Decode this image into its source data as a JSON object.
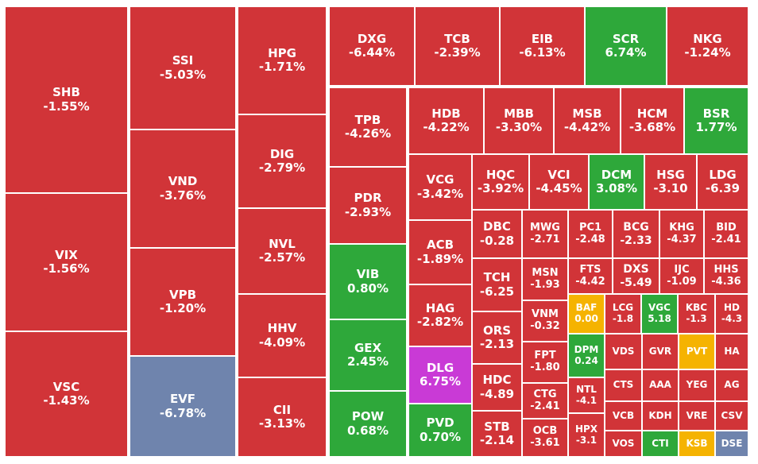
{
  "colors": {
    "red": "#d13438",
    "green": "#2ea83a",
    "yellow": "#f5b301",
    "purple": "#c93ad6",
    "blue": "#6f84ad"
  },
  "chart_data": {
    "type": "treemap",
    "title": "",
    "items": [
      {
        "ticker": "SHB",
        "change": "-1.55%",
        "value": -1.55,
        "color": "red"
      },
      {
        "ticker": "VIX",
        "change": "-1.56%",
        "value": -1.56,
        "color": "red"
      },
      {
        "ticker": "VSC",
        "change": "-1.43%",
        "value": -1.43,
        "color": "red"
      },
      {
        "ticker": "SSI",
        "change": "-5.03%",
        "value": -5.03,
        "color": "red"
      },
      {
        "ticker": "VND",
        "change": "-3.76%",
        "value": -3.76,
        "color": "red"
      },
      {
        "ticker": "VPB",
        "change": "-1.20%",
        "value": -1.2,
        "color": "red"
      },
      {
        "ticker": "EVF",
        "change": "-6.78%",
        "value": -6.78,
        "color": "blue"
      },
      {
        "ticker": "HPG",
        "change": "-1.71%",
        "value": -1.71,
        "color": "red"
      },
      {
        "ticker": "DIG",
        "change": "-2.79%",
        "value": -2.79,
        "color": "red"
      },
      {
        "ticker": "NVL",
        "change": "-2.57%",
        "value": -2.57,
        "color": "red"
      },
      {
        "ticker": "HHV",
        "change": "-4.09%",
        "value": -4.09,
        "color": "red"
      },
      {
        "ticker": "CII",
        "change": "-3.13%",
        "value": -3.13,
        "color": "red"
      },
      {
        "ticker": "DXG",
        "change": "-6.44%",
        "value": -6.44,
        "color": "red"
      },
      {
        "ticker": "TCB",
        "change": "-2.39%",
        "value": -2.39,
        "color": "red"
      },
      {
        "ticker": "EIB",
        "change": "-6.13%",
        "value": -6.13,
        "color": "red"
      },
      {
        "ticker": "SCR",
        "change": "6.74%",
        "value": 6.74,
        "color": "green"
      },
      {
        "ticker": "NKG",
        "change": "-1.24%",
        "value": -1.24,
        "color": "red"
      },
      {
        "ticker": "TPB",
        "change": "-4.26%",
        "value": -4.26,
        "color": "red"
      },
      {
        "ticker": "PDR",
        "change": "-2.93%",
        "value": -2.93,
        "color": "red"
      },
      {
        "ticker": "VIB",
        "change": "0.80%",
        "value": 0.8,
        "color": "green"
      },
      {
        "ticker": "GEX",
        "change": "2.45%",
        "value": 2.45,
        "color": "green"
      },
      {
        "ticker": "POW",
        "change": "0.68%",
        "value": 0.68,
        "color": "green"
      },
      {
        "ticker": "HDB",
        "change": "-4.22%",
        "value": -4.22,
        "color": "red"
      },
      {
        "ticker": "MBB",
        "change": "-3.30%",
        "value": -3.3,
        "color": "red"
      },
      {
        "ticker": "MSB",
        "change": "-4.42%",
        "value": -4.42,
        "color": "red"
      },
      {
        "ticker": "HCM",
        "change": "-3.68%",
        "value": -3.68,
        "color": "red"
      },
      {
        "ticker": "BSR",
        "change": "1.77%",
        "value": 1.77,
        "color": "green"
      },
      {
        "ticker": "VCG",
        "change": "-3.42%",
        "value": -3.42,
        "color": "red"
      },
      {
        "ticker": "ACB",
        "change": "-1.89%",
        "value": -1.89,
        "color": "red"
      },
      {
        "ticker": "HAG",
        "change": "-2.82%",
        "value": -2.82,
        "color": "red"
      },
      {
        "ticker": "DLG",
        "change": "6.75%",
        "value": 6.75,
        "color": "purple"
      },
      {
        "ticker": "PVD",
        "change": "0.70%",
        "value": 0.7,
        "color": "green"
      },
      {
        "ticker": "HQC",
        "change": "-3.92%",
        "value": -3.92,
        "color": "red"
      },
      {
        "ticker": "VCI",
        "change": "-4.45%",
        "value": -4.45,
        "color": "red"
      },
      {
        "ticker": "DCM",
        "change": "3.08%",
        "value": 3.08,
        "color": "green"
      },
      {
        "ticker": "HSG",
        "change": "-3.10",
        "value": -3.1,
        "color": "red"
      },
      {
        "ticker": "LDG",
        "change": "-6.39",
        "value": -6.39,
        "color": "red"
      },
      {
        "ticker": "DBC",
        "change": "-0.28",
        "value": -0.28,
        "color": "red"
      },
      {
        "ticker": "MWG",
        "change": "-2.71",
        "value": -2.71,
        "color": "red"
      },
      {
        "ticker": "PC1",
        "change": "-2.48",
        "value": -2.48,
        "color": "red"
      },
      {
        "ticker": "BCG",
        "change": "-2.33",
        "value": -2.33,
        "color": "red"
      },
      {
        "ticker": "KHG",
        "change": "-4.37",
        "value": -4.37,
        "color": "red"
      },
      {
        "ticker": "BID",
        "change": "-2.41",
        "value": -2.41,
        "color": "red"
      },
      {
        "ticker": "TCH",
        "change": "-6.25",
        "value": -6.25,
        "color": "red"
      },
      {
        "ticker": "MSN",
        "change": "-1.93",
        "value": -1.93,
        "color": "red"
      },
      {
        "ticker": "FTS",
        "change": "-4.42",
        "value": -4.42,
        "color": "red"
      },
      {
        "ticker": "DXS",
        "change": "-5.49",
        "value": -5.49,
        "color": "red"
      },
      {
        "ticker": "IJC",
        "change": "-1.09",
        "value": -1.09,
        "color": "red"
      },
      {
        "ticker": "HHS",
        "change": "-4.36",
        "value": -4.36,
        "color": "red"
      },
      {
        "ticker": "ORS",
        "change": "-2.13",
        "value": -2.13,
        "color": "red"
      },
      {
        "ticker": "VNM",
        "change": "-0.32",
        "value": -0.32,
        "color": "red"
      },
      {
        "ticker": "BAF",
        "change": "0.00",
        "value": 0.0,
        "color": "yellow"
      },
      {
        "ticker": "LCG",
        "change": "-1.8",
        "value": -1.8,
        "color": "red"
      },
      {
        "ticker": "VGC",
        "change": "5.18",
        "value": 5.18,
        "color": "green"
      },
      {
        "ticker": "KBC",
        "change": "-1.3",
        "value": -1.3,
        "color": "red"
      },
      {
        "ticker": "HD",
        "change": "-4.3",
        "value": -4.3,
        "color": "red"
      },
      {
        "ticker": "HDC",
        "change": "-4.89",
        "value": -4.89,
        "color": "red"
      },
      {
        "ticker": "FPT",
        "change": "-1.80",
        "value": -1.8,
        "color": "red"
      },
      {
        "ticker": "DPM",
        "change": "0.24",
        "value": 0.24,
        "color": "green"
      },
      {
        "ticker": "VDS",
        "change": "",
        "color": "red"
      },
      {
        "ticker": "GVR",
        "change": "",
        "color": "red"
      },
      {
        "ticker": "PVT",
        "change": "",
        "color": "yellow"
      },
      {
        "ticker": "HA",
        "change": "",
        "color": "red"
      },
      {
        "ticker": "CTG",
        "change": "-2.41",
        "value": -2.41,
        "color": "red"
      },
      {
        "ticker": "NTL",
        "change": "-4.1",
        "value": -4.1,
        "color": "red"
      },
      {
        "ticker": "CTS",
        "change": "",
        "color": "red"
      },
      {
        "ticker": "AAA",
        "change": "",
        "color": "red"
      },
      {
        "ticker": "YEG",
        "change": "",
        "color": "red"
      },
      {
        "ticker": "AG",
        "change": "",
        "color": "red"
      },
      {
        "ticker": "STB",
        "change": "-2.14",
        "value": -2.14,
        "color": "red"
      },
      {
        "ticker": "OCB",
        "change": "-3.61",
        "value": -3.61,
        "color": "red"
      },
      {
        "ticker": "HPX",
        "change": "-3.1",
        "value": -3.1,
        "color": "red"
      },
      {
        "ticker": "VCB",
        "change": "",
        "color": "red"
      },
      {
        "ticker": "KDH",
        "change": "",
        "color": "red"
      },
      {
        "ticker": "VRE",
        "change": "",
        "color": "red"
      },
      {
        "ticker": "CSV",
        "change": "",
        "color": "red"
      },
      {
        "ticker": "VOS",
        "change": "",
        "color": "red"
      },
      {
        "ticker": "CTI",
        "change": "",
        "color": "green"
      },
      {
        "ticker": "KSB",
        "change": "",
        "color": "yellow"
      },
      {
        "ticker": "DSE",
        "change": "",
        "color": "blue"
      }
    ]
  }
}
